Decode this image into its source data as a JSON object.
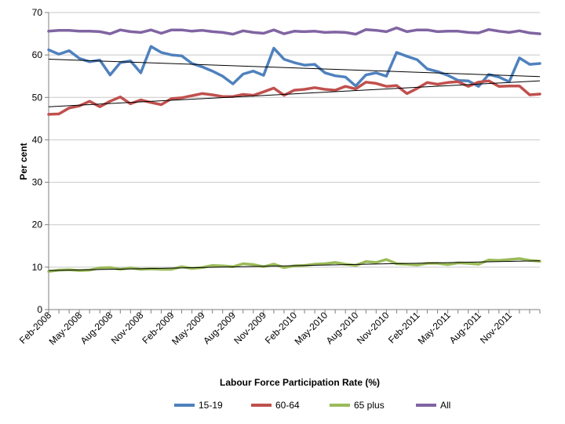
{
  "chart_data": {
    "type": "line",
    "xlabel": "Labour Force Participation Rate (%)",
    "ylabel": "Per cent",
    "ylim": [
      0,
      70
    ],
    "yticks": [
      0,
      10,
      20,
      30,
      40,
      50,
      60,
      70
    ],
    "grid": "horizontal",
    "legend": "bottom",
    "x": [
      "Feb-2008",
      "Mar-2008",
      "Apr-2008",
      "May-2008",
      "Jun-2008",
      "Jul-2008",
      "Aug-2008",
      "Sep-2008",
      "Oct-2008",
      "Nov-2008",
      "Dec-2008",
      "Jan-2009",
      "Feb-2009",
      "Mar-2009",
      "Apr-2009",
      "May-2009",
      "Jun-2009",
      "Jul-2009",
      "Aug-2009",
      "Sep-2009",
      "Oct-2009",
      "Nov-2009",
      "Dec-2009",
      "Jan-2010",
      "Feb-2010",
      "Mar-2010",
      "Apr-2010",
      "May-2010",
      "Jun-2010",
      "Jul-2010",
      "Aug-2010",
      "Sep-2010",
      "Oct-2010",
      "Nov-2010",
      "Dec-2010",
      "Jan-2011",
      "Feb-2011",
      "Mar-2011",
      "Apr-2011",
      "May-2011",
      "Jun-2011",
      "Jul-2011",
      "Aug-2011",
      "Sep-2011",
      "Oct-2011",
      "Nov-2011",
      "Dec-2011",
      "Jan-2012",
      "Feb-2012"
    ],
    "xtick_labels": [
      "Feb-2008",
      "May-2008",
      "Aug-2008",
      "Nov-2008",
      "Feb-2009",
      "May-2009",
      "Aug-2009",
      "Nov-2009",
      "Feb-2010",
      "May-2010",
      "Aug-2010",
      "Nov-2010",
      "Feb-2011",
      "May-2011",
      "Aug-2011",
      "Nov-2011"
    ],
    "series": [
      {
        "name": "15-19",
        "color": "#4f81bd",
        "values": [
          61.2,
          60.2,
          61.0,
          59.2,
          58.4,
          58.8,
          55.3,
          58.2,
          58.6,
          55.8,
          62.0,
          60.6,
          60.0,
          59.8,
          58.0,
          57.2,
          56.2,
          55.0,
          53.2,
          55.5,
          56.2,
          55.2,
          61.6,
          59.0,
          58.2,
          57.6,
          57.8,
          55.8,
          55.1,
          54.8,
          52.7,
          55.3,
          55.8,
          55.0,
          60.6,
          59.7,
          58.9,
          56.7,
          56.1,
          55.2,
          54.0,
          53.9,
          52.6,
          55.4,
          54.8,
          53.7,
          59.3,
          57.8,
          58.0
        ]
      },
      {
        "name": "60-64",
        "color": "#c0504d",
        "values": [
          46.0,
          46.1,
          47.5,
          48.0,
          49.1,
          47.8,
          49.1,
          50.1,
          48.5,
          49.4,
          48.8,
          48.3,
          49.7,
          49.9,
          50.4,
          50.9,
          50.6,
          50.2,
          50.2,
          50.7,
          50.5,
          51.3,
          52.2,
          50.5,
          51.7,
          51.9,
          52.3,
          51.9,
          51.7,
          52.6,
          52.0,
          53.6,
          53.3,
          52.6,
          52.8,
          50.9,
          52.1,
          53.5,
          53.1,
          53.5,
          53.7,
          52.6,
          53.6,
          53.9,
          52.6,
          52.7,
          52.7,
          50.6,
          50.8
        ]
      },
      {
        "name": "65 plus",
        "color": "#9bbb59",
        "values": [
          9.0,
          9.3,
          9.4,
          9.2,
          9.3,
          9.8,
          9.9,
          9.5,
          9.8,
          9.5,
          9.6,
          9.5,
          9.5,
          10.1,
          9.7,
          9.9,
          10.4,
          10.3,
          10.1,
          10.8,
          10.6,
          10.1,
          10.7,
          9.9,
          10.3,
          10.4,
          10.7,
          10.8,
          11.1,
          10.7,
          10.4,
          11.3,
          11.1,
          11.8,
          10.8,
          10.7,
          10.5,
          10.9,
          10.9,
          10.6,
          11.0,
          10.9,
          10.7,
          11.7,
          11.6,
          11.8,
          12.0,
          11.6,
          11.4
        ]
      },
      {
        "name": "All",
        "color": "#8064a2",
        "values": [
          65.6,
          65.8,
          65.8,
          65.6,
          65.6,
          65.5,
          65.0,
          65.9,
          65.5,
          65.3,
          65.9,
          65.1,
          65.9,
          65.9,
          65.6,
          65.8,
          65.5,
          65.3,
          64.9,
          65.7,
          65.3,
          65.1,
          65.9,
          65.0,
          65.6,
          65.5,
          65.6,
          65.3,
          65.4,
          65.3,
          64.9,
          66.0,
          65.8,
          65.5,
          66.4,
          65.5,
          65.9,
          65.9,
          65.5,
          65.6,
          65.6,
          65.3,
          65.2,
          66.0,
          65.6,
          65.3,
          65.7,
          65.2,
          65.0
        ]
      }
    ],
    "trendlines": [
      {
        "series": "15-19",
        "start": 59.0,
        "end": 54.9
      },
      {
        "series": "60-64",
        "start": 47.8,
        "end": 53.9
      },
      {
        "series": "65 plus",
        "start": 9.2,
        "end": 11.5
      }
    ]
  }
}
